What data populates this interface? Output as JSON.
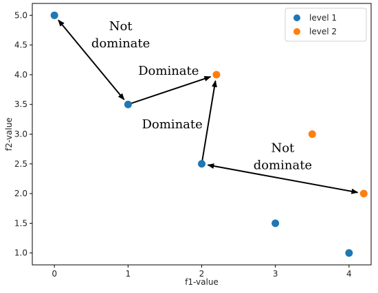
{
  "chart_data": {
    "type": "scatter",
    "title": "",
    "xlabel": "f1-value",
    "ylabel": "f2-value",
    "xlim": [
      -0.3,
      4.3
    ],
    "ylim": [
      0.8,
      5.2
    ],
    "xticks": [
      "0",
      "1",
      "2",
      "3",
      "4"
    ],
    "yticks": [
      "1.0",
      "1.5",
      "2.0",
      "2.5",
      "3.0",
      "3.5",
      "4.0",
      "4.5",
      "5.0"
    ],
    "grid": false,
    "legend_position": "top-right",
    "series": [
      {
        "name": "level 1",
        "color": "#1f77b4",
        "points": [
          [
            0,
            5
          ],
          [
            1,
            3.5
          ],
          [
            2,
            2.5
          ],
          [
            3,
            1.5
          ],
          [
            4,
            1
          ]
        ]
      },
      {
        "name": "level 2",
        "color": "#ff7f0e",
        "points": [
          [
            2.2,
            4
          ],
          [
            3.5,
            3
          ],
          [
            4.2,
            2
          ]
        ]
      }
    ],
    "arrows": [
      {
        "from": [
          1,
          3.5
        ],
        "to": [
          0,
          5
        ],
        "double": true
      },
      {
        "from": [
          1,
          3.5
        ],
        "to": [
          2.2,
          4
        ],
        "double": false
      },
      {
        "from": [
          2,
          2.5
        ],
        "to": [
          2.2,
          4
        ],
        "double": false
      },
      {
        "from": [
          2,
          2.5
        ],
        "to": [
          4.2,
          2
        ],
        "double": true
      }
    ],
    "annotations": [
      {
        "lines": [
          "Not",
          "dominate"
        ],
        "x": 0.9,
        "y": 4.75
      },
      {
        "lines": [
          "Dominate"
        ],
        "x": 1.55,
        "y": 4.0
      },
      {
        "lines": [
          "Dominate"
        ],
        "x": 1.6,
        "y": 3.1
      },
      {
        "lines": [
          "Not",
          "dominate"
        ],
        "x": 3.1,
        "y": 2.7
      }
    ]
  }
}
